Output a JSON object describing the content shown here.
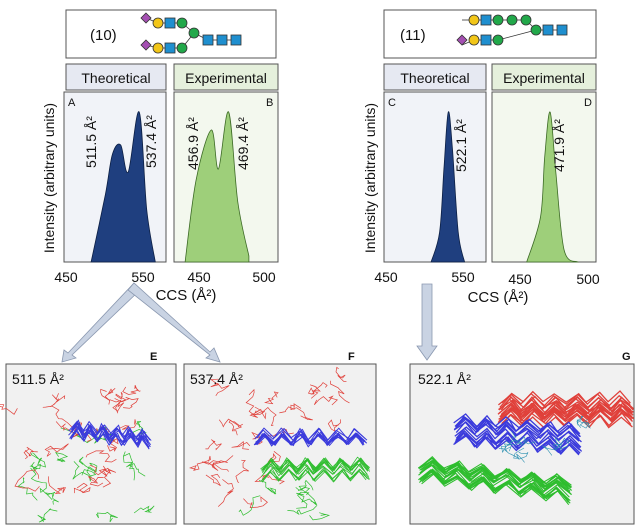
{
  "structures": [
    {
      "number": "(10)"
    },
    {
      "number": "(11)"
    }
  ],
  "panels": {
    "A": {
      "letter": "A",
      "header": "Theoretical",
      "peaks": [
        "511.5 Å²",
        "537.4 Å²"
      ]
    },
    "B": {
      "letter": "B",
      "header": "Experimental",
      "peaks": [
        "456.9 Å²",
        "469.4 Å²"
      ]
    },
    "C": {
      "letter": "C",
      "header": "Theoretical",
      "peaks": [
        "522.1 Å²"
      ]
    },
    "D": {
      "letter": "D",
      "header": "Experimental",
      "peaks": [
        "471.9 Å²"
      ]
    }
  },
  "axes": {
    "ylabel": "Intensity (arbitrary units)",
    "xlabel_left": "CCS (Å²)",
    "xlabel_right": "CCS (Å²)",
    "ticks_theoretical": [
      "450",
      "550"
    ],
    "ticks_experimental": [
      "450",
      "500"
    ]
  },
  "structures3d": {
    "E": {
      "letter": "E",
      "label": "511.5 Å²"
    },
    "F": {
      "letter": "F",
      "label": "537.4 Å²"
    },
    "G": {
      "letter": "G",
      "label": "522.1 Å²"
    }
  },
  "colors": {
    "theoretical_fill": "#1f3f7f",
    "experimental_fill": "#9ecf7a",
    "header_theoretical": "#e6e9f2",
    "header_experimental": "#e5f0dc",
    "plot_bg_theoretical": "#f1f3f8",
    "plot_bg_experimental": "#f3f8ee",
    "panel_3d_bg": "#f1f1f1",
    "arrow": "#c9d3e3",
    "red": "#e0403a",
    "green": "#2ebd2e",
    "blue": "#3a3adc"
  },
  "chart_data": [
    {
      "type": "area",
      "panel": "A",
      "series": [
        {
          "x": [
            470,
            490,
            500,
            511.5,
            522,
            537.4,
            548,
            560
          ],
          "y": [
            0,
            0.45,
            0.72,
            0.78,
            0.6,
            1.0,
            0.35,
            0
          ]
        }
      ]
    },
    {
      "type": "area",
      "panel": "B",
      "series": [
        {
          "x": [
            438,
            446,
            456.9,
            462,
            469.4,
            476,
            484
          ],
          "y": [
            0,
            0.55,
            0.88,
            0.62,
            1.0,
            0.4,
            0.04
          ]
        }
      ]
    },
    {
      "type": "area",
      "panel": "C",
      "series": [
        {
          "x": [
            498,
            510,
            516,
            522.1,
            528,
            536,
            545
          ],
          "y": [
            0,
            0.2,
            0.62,
            1.0,
            0.75,
            0.2,
            0
          ]
        }
      ]
    },
    {
      "type": "area",
      "panel": "D",
      "series": [
        {
          "x": [
            455,
            465,
            468,
            471.9,
            476,
            482,
            492
          ],
          "y": [
            0,
            0.3,
            0.7,
            1.0,
            0.6,
            0.08,
            0
          ]
        }
      ]
    }
  ]
}
